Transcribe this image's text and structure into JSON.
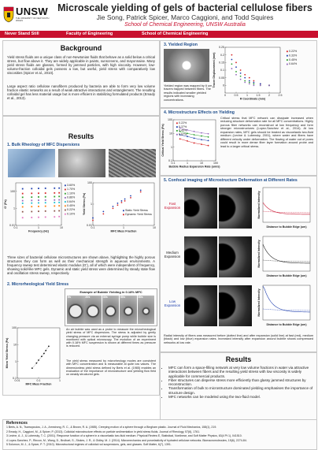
{
  "header": {
    "logo_text": "UNSW",
    "logo_sub": "THE UNIVERSITY OF NEW SOUTH WALES",
    "title": "Microscale yielding of gels of bacterial cellulose fibers",
    "authors": "Jie Song, Patrick Spicer, Marco Caggioni, and Todd Squires",
    "affiliation": "School of Chemical Engineering, UNSW Australia"
  },
  "bar": [
    "Never Stand Still",
    "Faculty of Engineering",
    "School of Chemical Engineering"
  ],
  "background": {
    "title": "Background",
    "p1": "Yield stress fluids are a unique class of non-Newtonian fluids that behave as a solid below a critical stress, but flow above it. They are widely applicable in paints, sunscreens, and mayonnaise. Many yield stress fluids are glasses, formed by jammed particles, with high viscosity. However, low-volume-fraction colloidal gels possess a low, but useful, yield stress with comparatively low viscosities (Spicer et al., 2010).",
    "p2": "Large aspect ratio cellulose nanofibers produced by bacteria are able to form very low volume fraction elastic networks as a result of weak attractive interactions and entanglement. The resulting colloidal gel has less material usage but is more efficient in stabilizing formulated products (Emady et al., 2013)."
  },
  "results_left": {
    "title": "Results",
    "s1": "1. Bulk Rheology of MFC Dispersions",
    "chart1_ylabel": "G' (Pa)",
    "chart1_xlabel": "Frequency (Hz)",
    "chart2_ylabel": "Yield Stress (Pa)",
    "chart2_xlabel": "MFC Mass Fraction",
    "s1_text": "Three sizes of bacterial cellulose microstructures are shown above, highlighting the highly porous structures they can form as well as their mechanical strength in aqueous environments. A frequency sweep test determined elastic modulus (G'), all of which were independent of frequency, showing solid-like MFC gels. Dynamic and static yield stress were determined by steady state flow and oscillation stress sweep, respectively.",
    "s2": "2. Microrheological Yield Stress",
    "img_title": "Example of Bubble Yielding in 0.18% MFC",
    "frames": [
      "0s",
      "20s",
      "40s",
      "60s",
      "80s"
    ],
    "s2_text1": "An air bubble was used as a probe to measure the microrheological yield stress of MFC dispersions. The stress is adjusted by gently changing pressure via an external syringe pump while bubble size is monitored with optical microscopy. The evolution of an experiment with 0.18% MFC suspension is shown at different times as pressure is reduced.",
    "s2_text2": "The yield stress measured by microrheology modes are consistent with MFC concentration and is measurable at quite low values. The dimensionless yield stress defined by Beris et al. (1985) enables an evaluation of the importance of microstructure and yielding flow field on weakly structured gels.",
    "chart3_ylabel": "Micro Yield Stress (Pa)",
    "chart3_xlabel": "MFC Mass Fraction"
  },
  "yield_region": {
    "title": "3. Yielded Region",
    "text": "Yielded region was mapped by 6 um tracers trapped between fibers. The results indicated smaller yielded regions with increasing concentrations.",
    "chart_ylabel": "Tracer Displacement (mm)",
    "chart_xlabel": "R Coordinate (mm)"
  },
  "microstructure": {
    "title": "4. Microstructure Effects on Yielding",
    "chart_ylabel": "Critical Yield Stress (Pa)",
    "chart_xlabel": "Bubble Radius Expansion Rate (um/s)",
    "text": "Critical stress that MFC network can dissipate increased when reducing structure deformation rate for all MFC concentrations. Highly porous fiber networks can reconstruct at low frequency and form stronger microstructures (Lopez-Sanchez et al., 2014). At low expansion rates, MFC gels should be treated as viscoelastic two-fluid medium (Levine & Lubensky, 2001), where water and fibers have different velocity under deformation. The flowing of water out of pores could result in more dense fiber layer formation around probe and lead to a larger critical stress."
  },
  "confocal": {
    "title": "5. Confocal imaging of Microstructure Deformation at Different Rates",
    "labels": [
      "Fast Expansion",
      "Medium Expansion",
      "Low Expansion"
    ],
    "chart_ylabel": "Normalized Intensity",
    "chart_xlabel": "Distance to Bubble Edge (um)",
    "caption": "Radial intensity of fibers was measured before (dotted line) and after expansion (solid line) at fast (red), medium (black) and low (blue) expansion rates. Increased intensity after expansion around bubble shows compressed networks at low rate."
  },
  "results_right": {
    "title": "Results",
    "bullets": [
      "MFC can form a space-filling network at very low volume fractions in water via attractive interactions between fibers and the resulting yield stress with low viscosity is widely applicable for commercial products.",
      "Fiber structures can disperse stress more efficiently than glassy jammed structures by reconstruction.",
      "Transformation of bulk to microstructure dominated yielding emphasises the importance of structure design.",
      "MFC networks can be modeled using the two-fluid model."
    ]
  },
  "references": {
    "title": "References",
    "items": [
      "1 Beris, A. N., Tsamopoulos, J. A., Armstrong, R. C., & Brown, R. A. (1985). Creeping motion of a sphere through a Bingham plastic. Journal of Fluid Mechanics, 158(1), 219.",
      "2 Emady, H., Caggioni, M., & Spicer, P. (2013). Colloidal microstructure effects on particle sedimentation in yield stress fluids. Journal of Rheology, 57(6), 1761.",
      "3 Levine, A. J., & Lubensky, T. C. (2001). Response function of a sphere in a viscoelastic two-fluid medium. Physical Review E, Statistical, Nonlinear, and Soft Matter Physics, 63(4 Pt 1), 041510.",
      "4 Lopez-Sanchez, P., Rincon, M., Wang, D., Brulhart, S., Stokes, J. R., & Gidley, M. J. (2014). Micromechanics and poroelasticity of hydrated cellulose networks. Biomacromolecules, 15(6), 2274-84.",
      "5 Solomon, M. J., & Spicer, P. T. (2010). Microstructural regimes of colloidal rod suspensions, gels, and glasses. Soft Matter, 6(7), 1391."
    ]
  },
  "chart_data": [
    {
      "type": "scatter",
      "ylabel": "G' (Pa)",
      "xlabel": "Frequency (Hz)",
      "xlim": [
        0.1,
        10
      ],
      "ylim": [
        0.01,
        1000
      ],
      "xscale": "log",
      "yscale": "log",
      "legend_position": "right",
      "series": [
        {
          "name": "3.60%",
          "color": "#1f3fae",
          "x": [
            0.2,
            0.5,
            1,
            2,
            5,
            8
          ],
          "values": [
            200,
            210,
            220,
            230,
            235,
            240
          ]
        },
        {
          "name": "1.70%",
          "color": "#d62728",
          "x": [
            0.2,
            0.5,
            1,
            2,
            5,
            8
          ],
          "values": [
            55,
            58,
            60,
            62,
            65,
            67
          ]
        },
        {
          "name": "1.10%",
          "color": "#2ca02c",
          "x": [
            0.2,
            0.5,
            1,
            2,
            5,
            8
          ],
          "values": [
            20,
            21,
            22,
            23,
            24,
            25
          ]
        },
        {
          "name": "0.86%",
          "color": "#9467bd",
          "x": [
            0.2,
            0.5,
            1,
            2,
            5,
            8
          ],
          "values": [
            8,
            8.5,
            9,
            9.3,
            9.6,
            10
          ]
        },
        {
          "name": "0.64%",
          "color": "#17becf",
          "x": [
            0.2,
            0.5,
            1,
            2,
            5,
            8
          ],
          "values": [
            4,
            4.2,
            4.4,
            4.6,
            4.8,
            5
          ]
        },
        {
          "name": "0.45%",
          "color": "#ff7f0e",
          "x": [
            0.2,
            0.5,
            1,
            2,
            5,
            8
          ],
          "values": [
            1.5,
            1.6,
            1.7,
            1.8,
            1.9,
            2
          ]
        },
        {
          "name": "0.22%",
          "color": "#8c564b",
          "x": [
            0.2,
            0.5,
            1,
            2,
            5,
            8
          ],
          "values": [
            0.4,
            0.42,
            0.45,
            0.48,
            0.5,
            0.52
          ]
        },
        {
          "name": "0.10%",
          "color": "#e377c2",
          "x": [
            0.2,
            0.5,
            1,
            2,
            5,
            8
          ],
          "values": [
            0.08,
            0.085,
            0.09,
            0.095,
            0.1,
            0.11
          ]
        }
      ]
    },
    {
      "type": "scatter",
      "ylabel": "Yield Stress (Pa)",
      "xlabel": "MFC Mass Fraction",
      "xlim": [
        0.1,
        10
      ],
      "ylim": [
        0.01,
        100
      ],
      "xscale": "log",
      "yscale": "log",
      "legend_position": "bottom-right",
      "series": [
        {
          "name": "Static Yield Stress",
          "color": "#1f3fae",
          "x": [
            0.1,
            0.22,
            0.45,
            0.64,
            0.86,
            1.1,
            1.7,
            3.6
          ],
          "values": [
            0.05,
            0.2,
            0.6,
            1.2,
            2,
            3,
            6,
            20
          ]
        },
        {
          "name": "Dynamic Yield Stress",
          "color": "#d62728",
          "x": [
            0.1,
            0.22,
            0.45,
            0.64,
            0.86,
            1.1,
            1.7,
            3.6
          ],
          "values": [
            0.03,
            0.12,
            0.4,
            0.8,
            1.4,
            2,
            4,
            14
          ]
        }
      ]
    },
    {
      "type": "scatter",
      "ylabel": "Micro Yield Stress (Pa)",
      "xlabel": "MFC Mass Fraction",
      "xlim": [
        0.01,
        1
      ],
      "ylim": [
        0.1,
        100
      ],
      "xscale": "log",
      "yscale": "log",
      "series": [
        {
          "name": "",
          "color": "#111111",
          "x": [
            0.05,
            0.08,
            0.1,
            0.14,
            0.18,
            0.22,
            0.3
          ],
          "values": [
            0.4,
            0.8,
            1.2,
            2,
            3,
            4.5,
            8
          ]
        }
      ]
    },
    {
      "type": "scatter",
      "ylabel": "Tracer Displacement (mm)",
      "xlabel": "R Coordinate (mm)",
      "xlim": [
        0,
        2.5
      ],
      "ylim": [
        -0.05,
        0.25
      ],
      "legend_position": "top-right",
      "series": [
        {
          "name": "0.22%",
          "color": "#d62728",
          "x": [
            0.3,
            0.5,
            0.7,
            0.9,
            1.1,
            1.3,
            1.6,
            2.0
          ],
          "values": [
            0.2,
            0.15,
            0.1,
            0.07,
            0.05,
            0.03,
            0.01,
            0
          ]
        },
        {
          "name": "0.33%",
          "color": "#1f3fae",
          "x": [
            0.3,
            0.5,
            0.7,
            0.9,
            1.1,
            1.3,
            1.6,
            2.0
          ],
          "values": [
            0.17,
            0.12,
            0.08,
            0.05,
            0.03,
            0.02,
            0.01,
            0
          ]
        },
        {
          "name": "0.45%",
          "color": "#2ca02c",
          "x": [
            0.3,
            0.5,
            0.7,
            0.9,
            1.1,
            1.3,
            1.6,
            2.0
          ],
          "values": [
            0.14,
            0.09,
            0.06,
            0.03,
            0.02,
            0.01,
            0,
            0
          ]
        },
        {
          "name": "0.64%",
          "color": "#9467bd",
          "x": [
            0.3,
            0.5,
            0.7,
            0.9,
            1.1,
            1.3,
            1.6,
            2.0
          ],
          "values": [
            0.11,
            0.07,
            0.04,
            0.02,
            0.01,
            0,
            0,
            0
          ]
        }
      ]
    },
    {
      "type": "line",
      "ylabel": "Critical Yield Stress (Pa)",
      "xlabel": "Bubble Radius Expansion Rate (um/s)",
      "xlim": [
        0.1,
        100
      ],
      "ylim": [
        0.1,
        100
      ],
      "xscale": "log",
      "yscale": "log",
      "legend_position": "top-left",
      "series": [
        {
          "name": "0.22%",
          "color": "#d62728",
          "x": [
            0.3,
            1,
            3,
            10,
            30
          ],
          "values": [
            4,
            2.8,
            2,
            1.6,
            1.3
          ]
        },
        {
          "name": "0.37%",
          "color": "#1f3fae",
          "x": [
            0.3,
            1,
            3,
            10,
            30
          ],
          "values": [
            8,
            6,
            4.5,
            3.5,
            3
          ]
        },
        {
          "name": "0.45%",
          "color": "#2ca02c",
          "x": [
            0.3,
            1,
            3,
            10,
            30
          ],
          "values": [
            14,
            10,
            8,
            6.5,
            5.5
          ]
        },
        {
          "name": "0.67%",
          "color": "#9467bd",
          "x": [
            0.3,
            1,
            3,
            10,
            30
          ],
          "values": [
            25,
            18,
            14,
            11,
            9.5
          ]
        }
      ]
    }
  ]
}
